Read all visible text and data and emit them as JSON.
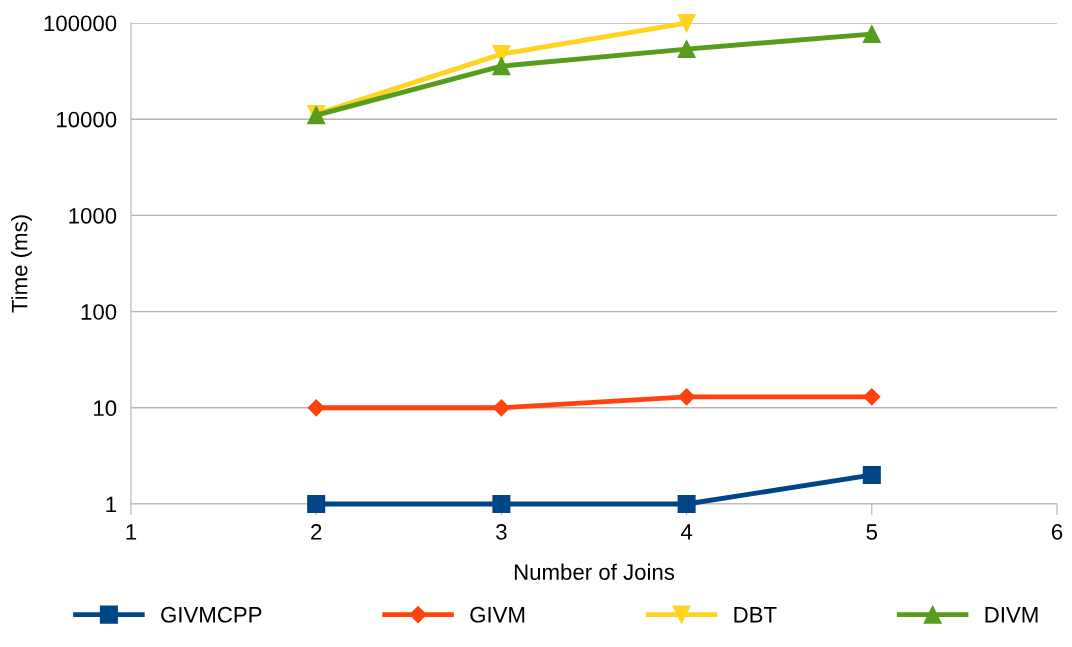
{
  "chart_data": {
    "type": "line",
    "xlabel": "Number of Joins",
    "ylabel": "Time (ms)",
    "log": "y",
    "x": [
      2,
      3,
      4,
      5
    ],
    "series": [
      {
        "name": "GIVMCPP",
        "color": "#004586",
        "marker": "square",
        "values": [
          1,
          1,
          1,
          2
        ]
      },
      {
        "name": "GIVM",
        "color": "#ff420e",
        "marker": "diamond",
        "values": [
          10,
          10,
          13,
          13
        ]
      },
      {
        "name": "DBT",
        "color": "#ffd320",
        "marker": "triangle_down",
        "values": [
          11300,
          47500,
          100000,
          null
        ]
      },
      {
        "name": "DIVM",
        "color": "#579d1c",
        "marker": "triangle",
        "values": [
          11000,
          35600,
          53600,
          76800
        ]
      }
    ],
    "xlim": [
      1,
      6
    ],
    "xticks": [
      1,
      2,
      3,
      4,
      5,
      6
    ],
    "ylim": [
      1,
      100000
    ],
    "yticks": [
      1,
      10,
      100,
      1000,
      10000,
      100000
    ],
    "grid": "y",
    "legend": "bottom",
    "line_style": "solid"
  }
}
